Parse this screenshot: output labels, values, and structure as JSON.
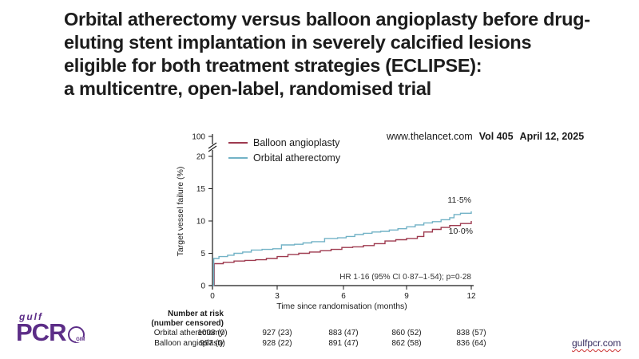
{
  "title": "Orbital atherectomy versus balloon angioplasty before drug-\neluting stent implantation in severely calcified lesions\neligible for both treatment strategies (ECLIPSE):\na multicentre, open-label, randomised trial",
  "source": {
    "site": "www.thelancet.com",
    "volume": "Vol 405",
    "date": "April 12, 2025"
  },
  "chart_data": {
    "type": "line",
    "subtype": "kaplan-meier-step",
    "xlabel": "Time since randomisation (months)",
    "ylabel": "Target vessel failure (%)",
    "xticks": [
      0,
      3,
      6,
      9,
      12
    ],
    "yticks": [
      0,
      5,
      10,
      15,
      20
    ],
    "ybreak_top_label": "100",
    "xlim": [
      0,
      12
    ],
    "ylim": [
      0,
      20
    ],
    "grid": false,
    "legend_position": "top-left",
    "annotation": "HR 1·16 (95% CI 0·87–1·54); p=0·28",
    "series": [
      {
        "name": "Balloon angioplasty",
        "color": "#9e3a4f",
        "end_label": "10·0%",
        "final_value_pct": 10.0,
        "points": [
          [
            0,
            0
          ],
          [
            0.08,
            3.4
          ],
          [
            0.5,
            3.6
          ],
          [
            1.0,
            3.8
          ],
          [
            1.5,
            3.9
          ],
          [
            2.0,
            4.0
          ],
          [
            2.5,
            4.2
          ],
          [
            3.0,
            4.5
          ],
          [
            3.5,
            4.8
          ],
          [
            4.0,
            5.0
          ],
          [
            4.5,
            5.2
          ],
          [
            5.0,
            5.4
          ],
          [
            5.5,
            5.6
          ],
          [
            6.0,
            5.9
          ],
          [
            6.5,
            6.0
          ],
          [
            7.0,
            6.2
          ],
          [
            7.5,
            6.5
          ],
          [
            8.0,
            6.9
          ],
          [
            8.5,
            7.1
          ],
          [
            9.0,
            7.3
          ],
          [
            9.5,
            7.6
          ],
          [
            9.8,
            8.3
          ],
          [
            10.2,
            8.7
          ],
          [
            10.6,
            9.0
          ],
          [
            11.0,
            9.3
          ],
          [
            11.5,
            9.6
          ],
          [
            12,
            10.0
          ]
        ]
      },
      {
        "name": "Orbital atherectomy",
        "color": "#72b2c6",
        "end_label": "11·5%",
        "final_value_pct": 11.5,
        "points": [
          [
            0,
            0
          ],
          [
            0.06,
            4.2
          ],
          [
            0.3,
            4.5
          ],
          [
            0.7,
            4.7
          ],
          [
            1.0,
            5.0
          ],
          [
            1.4,
            5.2
          ],
          [
            1.8,
            5.5
          ],
          [
            2.3,
            5.6
          ],
          [
            2.8,
            5.7
          ],
          [
            3.2,
            6.3
          ],
          [
            3.8,
            6.4
          ],
          [
            4.2,
            6.6
          ],
          [
            4.6,
            6.8
          ],
          [
            5.2,
            7.3
          ],
          [
            5.8,
            7.4
          ],
          [
            6.2,
            7.6
          ],
          [
            6.6,
            7.9
          ],
          [
            7.0,
            8.1
          ],
          [
            7.4,
            8.3
          ],
          [
            7.8,
            8.4
          ],
          [
            8.2,
            8.6
          ],
          [
            8.6,
            8.8
          ],
          [
            9.0,
            9.1
          ],
          [
            9.4,
            9.4
          ],
          [
            9.8,
            9.7
          ],
          [
            10.2,
            9.9
          ],
          [
            10.6,
            10.2
          ],
          [
            11.0,
            10.5
          ],
          [
            11.2,
            11.0
          ],
          [
            11.5,
            11.2
          ],
          [
            12,
            11.5
          ]
        ]
      }
    ]
  },
  "risk_table": {
    "header_line1": "Number at risk",
    "header_line2": "(number censored)",
    "rows": [
      {
        "label": "Orbital atherectomy",
        "values": [
          "1008 (0)",
          "927 (23)",
          "883 (47)",
          "860 (52)",
          "838 (57)"
        ]
      },
      {
        "label": "Balloon angioplasty",
        "values": [
          "997 (0)",
          "928 (22)",
          "891 (47)",
          "862 (58)",
          "836 (64)"
        ]
      }
    ]
  },
  "footer": {
    "logo": {
      "script": "gulf",
      "main": "PCR",
      "badge": "GIM"
    },
    "link": "gulfpcr.com"
  }
}
